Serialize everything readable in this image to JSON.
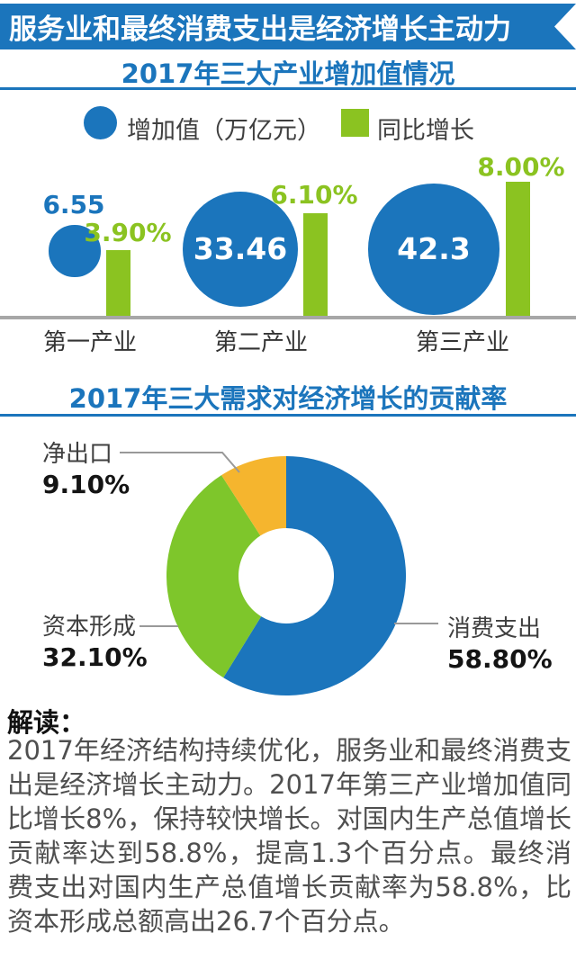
{
  "header": {
    "title": "服务业和最终消费支出是经济增长主动力"
  },
  "colors": {
    "blue": "#1b75bc",
    "green": "#8bc321",
    "donut_green": "#7ec62b",
    "orange": "#f5b52e",
    "baseline_gray": "#a7a7a7",
    "leader_gray": "#999999",
    "label_gray": "#3f3f3f",
    "value_black": "#141414",
    "body_text": "#4f4f4f"
  },
  "section1": {
    "title": "2017年三大产业增加值情况",
    "legend": {
      "value_label": "增加值（万亿元）",
      "growth_label": "同比增长"
    }
  },
  "section2": {
    "title": "2017年三大需求对经济增长的贡献率"
  },
  "chart_data": [
    {
      "type": "bar",
      "subtype": "bubble-and-bar",
      "title": "2017年三大产业增加值情况",
      "categories": [
        "第一产业",
        "第二产业",
        "第三产业"
      ],
      "series": [
        {
          "name": "增加值（万亿元）",
          "values": [
            6.55,
            33.46,
            42.3
          ],
          "labels": [
            "6.55",
            "33.46",
            "42.3"
          ],
          "color": "#1b75bc"
        },
        {
          "name": "同比增长",
          "values": [
            3.9,
            6.1,
            8.0
          ],
          "labels": [
            "3.90%",
            "6.10%",
            "8.00%"
          ],
          "color": "#8bc321"
        }
      ],
      "legend_position": "top",
      "grid": false
    },
    {
      "type": "pie",
      "subtype": "donut",
      "title": "2017年三大需求对经济增长的贡献率",
      "start_angle_deg": 0,
      "direction": "clockwise",
      "slices": [
        {
          "label": "消费支出",
          "value": 58.8,
          "display": "58.80%",
          "color": "#1b75bc"
        },
        {
          "label": "资本形成",
          "value": 32.1,
          "display": "32.10%",
          "color": "#7ec62b"
        },
        {
          "label": "净出口",
          "value": 9.1,
          "display": "9.10%",
          "color": "#f5b52e"
        }
      ]
    }
  ],
  "interpretation": {
    "heading": "解读：",
    "body": "2017年经济结构持续优化，服务业和最终消费支出是经济增长主动力。2017年第三产业增加值同比增长8%，保持较快增长。对国内生产总值增长贡献率达到58.8%，提高1.3个百分点。最终消费支出对国内生产总值增长贡献率为58.8%，比资本形成总额高出26.7个百分点。"
  }
}
